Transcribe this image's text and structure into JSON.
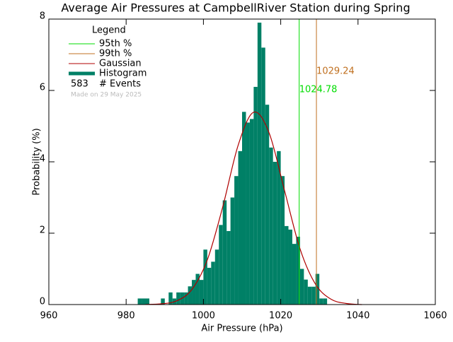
{
  "chart_data": {
    "type": "histogram",
    "title": "Average Air Pressures at CampbellRiver Station during Spring",
    "xlabel": "Air Pressure (hPa)",
    "ylabel": "Probability (%)",
    "bins": [
      983,
      984,
      985,
      986,
      987,
      988,
      989,
      990,
      991,
      992,
      993,
      994,
      995,
      996,
      997,
      998,
      999,
      1000,
      1001,
      1002,
      1003,
      1004,
      1005,
      1006,
      1007,
      1008,
      1009,
      1010,
      1011,
      1012,
      1013,
      1014,
      1015,
      1016,
      1017,
      1018,
      1019,
      1020,
      1021,
      1022,
      1023,
      1024,
      1025,
      1026,
      1027,
      1028,
      1029,
      1030,
      1031,
      1032
    ],
    "values": [
      0.17,
      0.17,
      0.17,
      0,
      0,
      0,
      0.17,
      0,
      0.34,
      0.17,
      0.34,
      0.34,
      0.34,
      0.51,
      0.69,
      0.86,
      0.69,
      1.54,
      1.03,
      1.2,
      1.54,
      2.23,
      2.92,
      2.06,
      3.0,
      3.6,
      4.3,
      5.4,
      5.1,
      5.2,
      6.1,
      7.9,
      7.2,
      5.6,
      4.4,
      4.0,
      4.3,
      3.6,
      2.2,
      2.1,
      1.7,
      1.9,
      1.0,
      0.7,
      0.5,
      0.5,
      0.86,
      0.17,
      0.17
    ],
    "color": "#008066",
    "histogram_name": "Histogram",
    "xlim": [
      960,
      1060
    ],
    "xticks": [
      960,
      980,
      1000,
      1020,
      1040,
      1060
    ],
    "ylim": [
      0,
      8
    ],
    "yticks": [
      0,
      2,
      4,
      6,
      8
    ],
    "gaussian": {
      "name": "Gaussian",
      "color": "#b00000",
      "x": [
        985,
        989,
        993,
        997,
        1001,
        1005,
        1009,
        1013,
        1017,
        1021,
        1025,
        1029,
        1033,
        1037,
        1041
      ],
      "values": [
        0.003,
        0.02,
        0.1,
        0.42,
        1.25,
        2.74,
        4.47,
        5.39,
        4.81,
        3.19,
        1.56,
        0.57,
        0.15,
        0.03,
        0.0
      ]
    },
    "percentiles": [
      {
        "name": "95th %",
        "value": 1024.78,
        "color": "#00dd00"
      },
      {
        "name": "99th %",
        "value": 1029.24,
        "color": "#c07020"
      }
    ],
    "legend_title": "Legend",
    "events": {
      "count": 583,
      "label": "# Events"
    },
    "footnote": "Made on 29 May 2025"
  }
}
